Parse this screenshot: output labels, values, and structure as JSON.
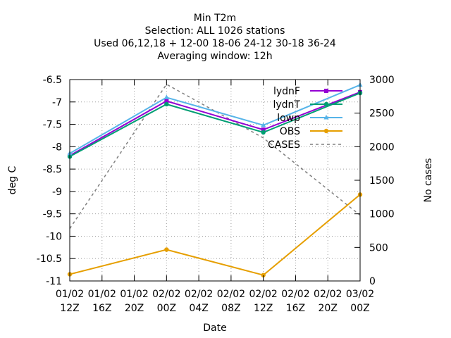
{
  "chart_data": {
    "type": "line",
    "title_lines": [
      "Min T2m",
      "Selection: ALL    1026 stations",
      "Used  06,12,18  + 12-00 18-06 24-12 30-18 36-24",
      "Averaging window: 12h"
    ],
    "xlabel": "Date",
    "ylabel": "deg C",
    "y2label": "No cases",
    "x_ticks": [
      {
        "hours": 0,
        "line1": "01/02",
        "line2": "12Z"
      },
      {
        "hours": 4,
        "line1": "01/02",
        "line2": "16Z"
      },
      {
        "hours": 8,
        "line1": "01/02",
        "line2": "20Z"
      },
      {
        "hours": 12,
        "line1": "02/02",
        "line2": "00Z"
      },
      {
        "hours": 16,
        "line1": "02/02",
        "line2": "04Z"
      },
      {
        "hours": 20,
        "line1": "02/02",
        "line2": "08Z"
      },
      {
        "hours": 24,
        "line1": "02/02",
        "line2": "12Z"
      },
      {
        "hours": 28,
        "line1": "02/02",
        "line2": "16Z"
      },
      {
        "hours": 32,
        "line1": "02/02",
        "line2": "20Z"
      },
      {
        "hours": 36,
        "line1": "03/02",
        "line2": "00Z"
      }
    ],
    "xlim_hours": [
      0,
      36
    ],
    "ylim": [
      -11,
      -6.5
    ],
    "y_ticks": [
      "-6.5",
      "-7",
      "-7.5",
      "-8",
      "-8.5",
      "-9",
      "-9.5",
      "-10",
      "-10.5",
      "-11"
    ],
    "y2lim": [
      0,
      3000
    ],
    "y2_ticks": [
      "3000",
      "2500",
      "2000",
      "1500",
      "1000",
      "500",
      "0"
    ],
    "grid": true,
    "legend_position": "top-right",
    "series": [
      {
        "name": "lydnF",
        "color": "#9400d3",
        "marker": "square",
        "axis": "y1",
        "x_hours": [
          0,
          12,
          24,
          36
        ],
        "values": [
          -8.2,
          -6.98,
          -7.62,
          -6.78
        ]
      },
      {
        "name": "lydnT",
        "color": "#009e73",
        "marker": "circle",
        "axis": "y1",
        "x_hours": [
          0,
          12,
          24,
          36
        ],
        "values": [
          -8.22,
          -7.05,
          -7.68,
          -6.8
        ]
      },
      {
        "name": "lowp",
        "color": "#56b4e9",
        "marker": "triangle",
        "axis": "y1",
        "x_hours": [
          0,
          12,
          24,
          36
        ],
        "values": [
          -8.15,
          -6.9,
          -7.52,
          -6.62
        ]
      },
      {
        "name": "OBS",
        "color": "#e69f00",
        "marker": "circle",
        "axis": "y1",
        "x_hours": [
          0,
          12,
          24,
          36
        ],
        "values": [
          -10.85,
          -10.3,
          -10.87,
          -9.07
        ]
      },
      {
        "name": "CASES",
        "color": "#808080",
        "marker": "none",
        "dash": "4,4",
        "axis": "y2",
        "x_hours": [
          0,
          12,
          24,
          36
        ],
        "values": [
          780,
          2930,
          2130,
          980
        ]
      }
    ]
  }
}
